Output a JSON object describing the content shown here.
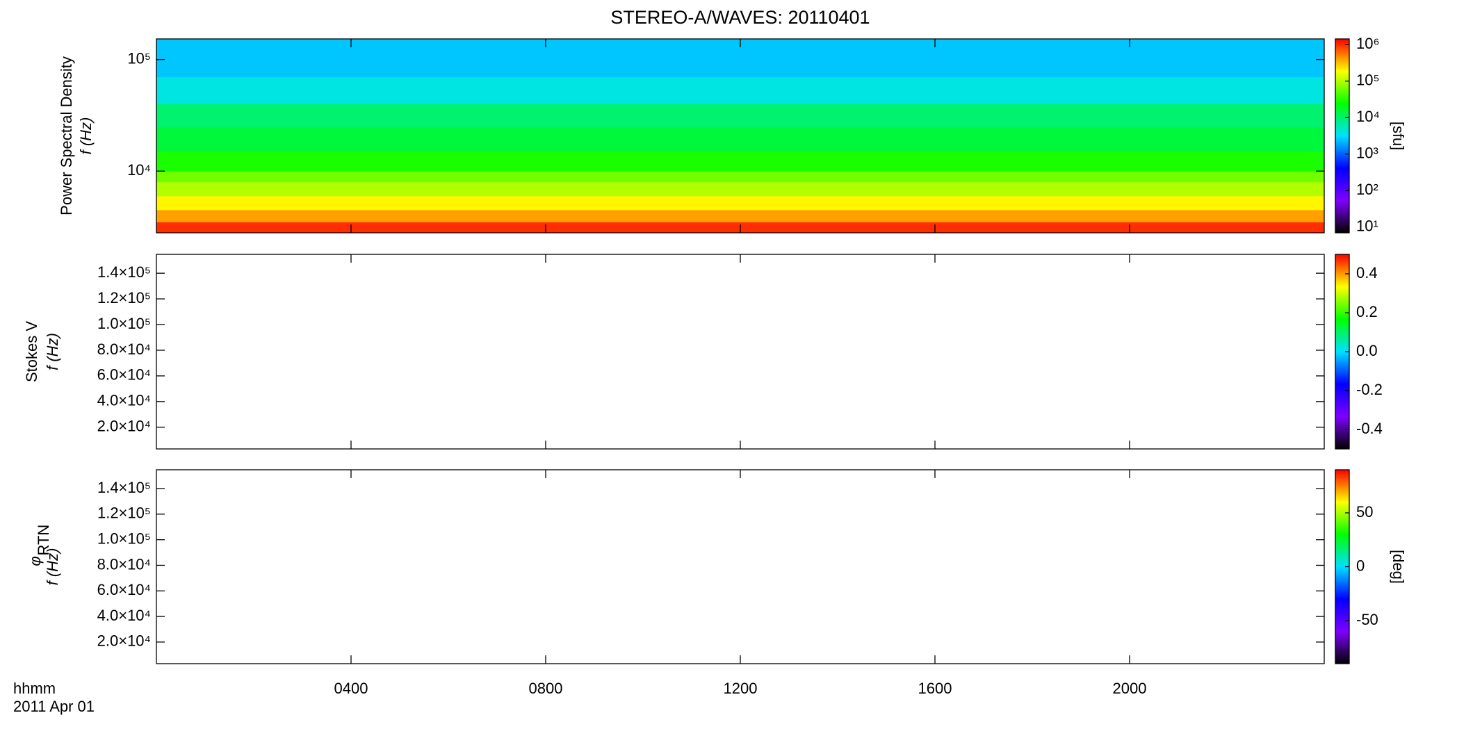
{
  "chart_data": [
    {
      "type": "heatmap",
      "title": "STEREO-A/WAVES: 20110401",
      "ylabel": "Power Spectral Density",
      "ylabel2": "f (Hz)",
      "ylog": true,
      "ylim": [
        2800,
        153000
      ],
      "yticks": [
        {
          "value": 10000,
          "label": "10⁴"
        },
        {
          "value": 100000,
          "label": "10⁵"
        }
      ],
      "freq_edges": [
        2800,
        3500,
        4500,
        6000,
        8000,
        10000,
        15000,
        25000,
        40000,
        70000,
        153000
      ],
      "values": [
        1000000,
        400000,
        200000,
        100000,
        60000,
        30000,
        15000,
        10000,
        4000,
        2500
      ],
      "zlog": true,
      "zlim": [
        7,
        1430000
      ],
      "zticks": [
        {
          "value": 10,
          "label": "10¹"
        },
        {
          "value": 100,
          "label": "10²"
        },
        {
          "value": 1000,
          "label": "10³"
        },
        {
          "value": 10000,
          "label": "10⁴"
        },
        {
          "value": 100000,
          "label": "10⁵"
        },
        {
          "value": 1000000,
          "label": "10⁶"
        }
      ],
      "zlabel": "[sfu]",
      "colormap": [
        "#000000",
        "#7f00ff",
        "#0000ff",
        "#00e0ff",
        "#00ff00",
        "#ffff00",
        "#ff0000"
      ]
    },
    {
      "type": "heatmap",
      "ylabel": "Stokes V",
      "ylabel2": "f (Hz)",
      "ylim": [
        3100,
        154700
      ],
      "yticks": [
        {
          "value": 20000,
          "label": "2.0×10⁴"
        },
        {
          "value": 40000,
          "label": "4.0×10⁴"
        },
        {
          "value": 60000,
          "label": "6.0×10⁴"
        },
        {
          "value": 80000,
          "label": "8.0×10⁴"
        },
        {
          "value": 100000,
          "label": "1.0×10⁵"
        },
        {
          "value": 120000,
          "label": "1.2×10⁵"
        },
        {
          "value": 140000,
          "label": "1.4×10⁵"
        }
      ],
      "zlim": [
        -0.5,
        0.5
      ],
      "zticks": [
        -0.4,
        -0.2,
        {
          "value": 0,
          "label": "0.0"
        },
        0.2,
        0.4
      ],
      "colormap": [
        "#000000",
        "#7f00ff",
        "#0000ff",
        "#00e0ff",
        "#00ff00",
        "#ffff00",
        "#ff0000"
      ]
    },
    {
      "type": "heatmap",
      "ylabel": "φ",
      "ylabel_sub": "RTN",
      "ylabel2": "f (Hz)",
      "ylim": [
        3100,
        154700
      ],
      "yticks": [
        {
          "value": 20000,
          "label": "2.0×10⁴"
        },
        {
          "value": 40000,
          "label": "4.0×10⁴"
        },
        {
          "value": 60000,
          "label": "6.0×10⁴"
        },
        {
          "value": 80000,
          "label": "8.0×10⁴"
        },
        {
          "value": 100000,
          "label": "1.0×10⁵"
        },
        {
          "value": 120000,
          "label": "1.2×10⁵"
        },
        {
          "value": 140000,
          "label": "1.4×10⁵"
        }
      ],
      "zlim": [
        -90,
        90
      ],
      "zticks": [
        -50,
        0,
        50
      ],
      "zlabel": "[deg]",
      "colormap": [
        "#000000",
        "#7f00ff",
        "#0000ff",
        "#00e0ff",
        "#00ff00",
        "#ffff00",
        "#ff0000"
      ],
      "xlim": [
        0,
        24
      ],
      "xticks": [
        {
          "value": 4,
          "label": "0400"
        },
        {
          "value": 8,
          "label": "0800"
        },
        {
          "value": 12,
          "label": "1200"
        },
        {
          "value": 16,
          "label": "1600"
        },
        {
          "value": 20,
          "label": "2000"
        }
      ],
      "xlabel": "hhmm",
      "date": "2011 Apr 01"
    }
  ]
}
